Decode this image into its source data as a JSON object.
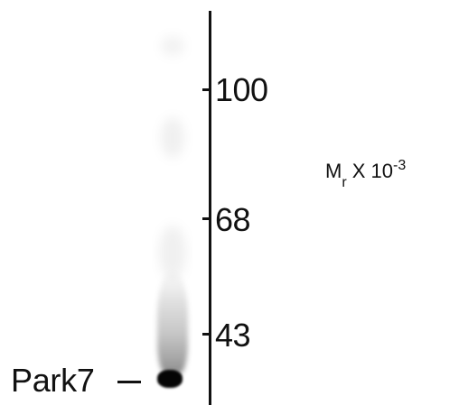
{
  "blot": {
    "markers": {
      "m100": "100",
      "m68": "68",
      "m43": "43"
    },
    "unit": {
      "base": "M",
      "subscript": "r",
      "times": " X 10",
      "exponent": "-3"
    },
    "band_label": "Park7",
    "colors": {
      "ink": "#111111",
      "background": "#ffffff",
      "band": "#050505"
    }
  }
}
